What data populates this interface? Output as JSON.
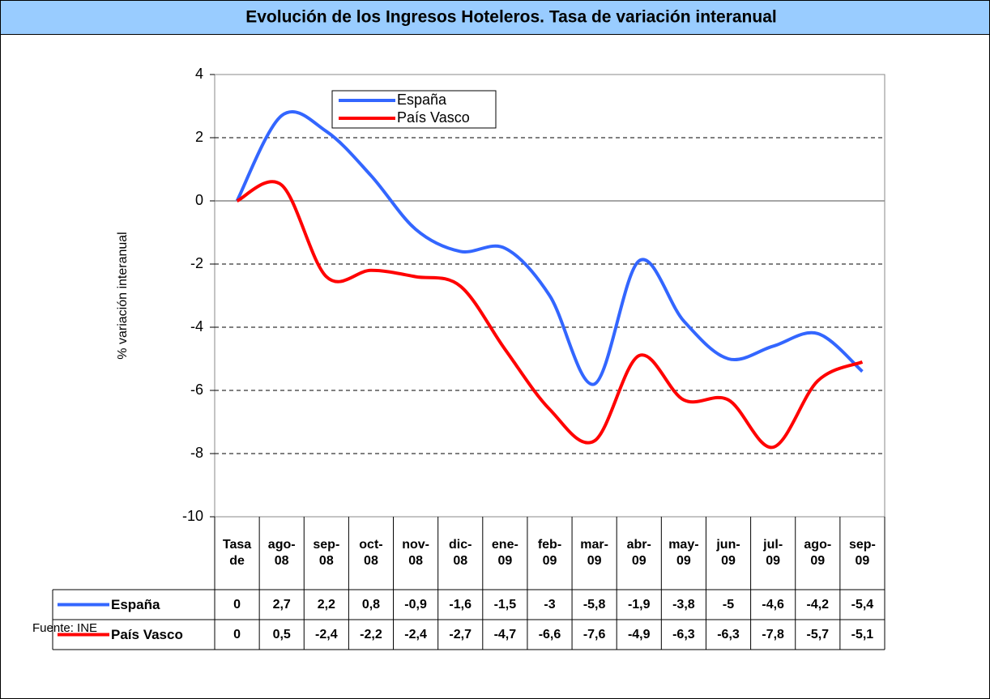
{
  "chart_data": {
    "type": "line",
    "title": "Evolución de los Ingresos Hoteleros. Tasa de variación interanual",
    "y_label": "% variación interanual",
    "source": "Fuente: INE",
    "categories": [
      "Tasa de",
      "ago-08",
      "sep-08",
      "oct-08",
      "nov-08",
      "dic-08",
      "ene-09",
      "feb-09",
      "mar-09",
      "abr-09",
      "may-09",
      "jun-09",
      "jul-09",
      "ago-09",
      "sep-09"
    ],
    "series": [
      {
        "name": "España",
        "color": "#3366ff",
        "values": [
          0,
          2.7,
          2.2,
          0.8,
          -0.9,
          -1.6,
          -1.5,
          -3,
          -5.8,
          -1.9,
          -3.8,
          -5,
          -4.6,
          -4.2,
          -5.4
        ],
        "value_labels": [
          "0",
          "2,7",
          "2,2",
          "0,8",
          "-0,9",
          "-1,6",
          "-1,5",
          "-3",
          "-5,8",
          "-1,9",
          "-3,8",
          "-5",
          "-4,6",
          "-4,2",
          "-5,4"
        ]
      },
      {
        "name": "País Vasco",
        "color": "#ff0000",
        "values": [
          0,
          0.5,
          -2.4,
          -2.2,
          -2.4,
          -2.7,
          -4.7,
          -6.6,
          -7.6,
          -4.9,
          -6.3,
          -6.3,
          -7.8,
          -5.7,
          -5.1
        ],
        "value_labels": [
          "0",
          "0,5",
          "-2,4",
          "-2,2",
          "-2,4",
          "-2,7",
          "-4,7",
          "-6,6",
          "-7,6",
          "-4,9",
          "-6,3",
          "-6,3",
          "-7,8",
          "-5,7",
          "-5,1"
        ]
      }
    ],
    "ylim": [
      -10,
      4
    ],
    "yticks": [
      -10,
      -8,
      -6,
      -4,
      -2,
      0,
      2,
      4
    ],
    "grid": true,
    "smooth": true
  }
}
